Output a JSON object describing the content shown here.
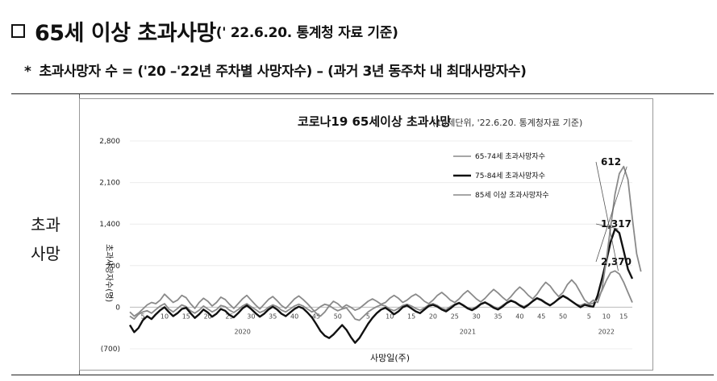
{
  "header": {
    "title_main": "65세 이상 초과사망",
    "title_note": "('  22.6.20. 통계청 자료 기준)"
  },
  "subheader": {
    "marker": "*",
    "text": "초과사망자 수 = ('20 –'22년 주차별 사망자수)  –  (과거 3년 동주차 내 최대사망자수)"
  },
  "row_label": {
    "line1": "초과",
    "line2": "사망"
  },
  "chart_data": {
    "type": "line",
    "title": "코로나19 65세이상 초과사망",
    "subtitle": "(10세단위, '22.6.20. 통계청자료 기준)",
    "xlabel": "사망일(주)",
    "ylabel": "초과사망자수(명)",
    "ylim": [
      -700,
      2800
    ],
    "yticks": [
      -700,
      0,
      700,
      1400,
      2100,
      2800
    ],
    "ytick_labels": [
      "(700)",
      "0",
      "700",
      "1,400",
      "2,100",
      "2,800"
    ],
    "x_week_ticks": [
      {
        "i": 3,
        "label": "5"
      },
      {
        "i": 8,
        "label": "10"
      },
      {
        "i": 13,
        "label": "15"
      },
      {
        "i": 18,
        "label": "20"
      },
      {
        "i": 23,
        "label": "25"
      },
      {
        "i": 28,
        "label": "30"
      },
      {
        "i": 33,
        "label": "35"
      },
      {
        "i": 38,
        "label": "40"
      },
      {
        "i": 43,
        "label": "45"
      },
      {
        "i": 48,
        "label": "50"
      },
      {
        "i": 55,
        "label": "5"
      },
      {
        "i": 60,
        "label": "10"
      },
      {
        "i": 65,
        "label": "15"
      },
      {
        "i": 70,
        "label": "20"
      },
      {
        "i": 75,
        "label": "25"
      },
      {
        "i": 80,
        "label": "30"
      },
      {
        "i": 85,
        "label": "35"
      },
      {
        "i": 90,
        "label": "40"
      },
      {
        "i": 95,
        "label": "45"
      },
      {
        "i": 100,
        "label": "50"
      },
      {
        "i": 106,
        "label": "5"
      },
      {
        "i": 110,
        "label": "10"
      },
      {
        "i": 114,
        "label": "15"
      }
    ],
    "year_labels": [
      {
        "i": 26,
        "label": "2020"
      },
      {
        "i": 78,
        "label": "2021"
      },
      {
        "i": 110,
        "label": "2022"
      }
    ],
    "legend_position": "top-right",
    "legend": [
      {
        "label": "65-74세 초과사망자수",
        "color": "#9a9a9a"
      },
      {
        "label": "75-84세 초과사망자수",
        "color": "#111111"
      },
      {
        "label": "85세 이상 초과사망자수",
        "color": "#9a9a9a"
      }
    ],
    "annotations": [
      {
        "label": "2,370",
        "series": 2
      },
      {
        "label": "1,317",
        "series": 1
      },
      {
        "label": "612",
        "series": 0
      }
    ],
    "series": [
      {
        "name": "65-74세 초과사망자수",
        "color": "#8a8a8a",
        "values": [
          -150,
          -200,
          -120,
          -80,
          -60,
          -100,
          -40,
          20,
          60,
          -30,
          -80,
          -20,
          40,
          10,
          -60,
          -100,
          -50,
          20,
          -30,
          -80,
          -40,
          30,
          10,
          -50,
          -90,
          -40,
          20,
          60,
          10,
          -40,
          -90,
          -60,
          0,
          40,
          10,
          -50,
          -80,
          -30,
          20,
          50,
          20,
          -30,
          -80,
          -50,
          10,
          50,
          30,
          -20,
          -60,
          -30,
          -10,
          -100,
          -200,
          -220,
          -150,
          -80,
          -30,
          10,
          40,
          20,
          -30,
          -60,
          -20,
          30,
          50,
          20,
          -20,
          -50,
          -10,
          40,
          60,
          30,
          -20,
          -40,
          10,
          50,
          80,
          40,
          -10,
          -30,
          10,
          60,
          90,
          50,
          10,
          -20,
          30,
          80,
          120,
          90,
          40,
          10,
          50,
          110,
          160,
          130,
          80,
          40,
          80,
          150,
          200,
          160,
          100,
          50,
          30,
          60,
          40,
          70,
          150,
          280,
          450,
          580,
          612,
          560,
          420,
          250,
          80
        ]
      },
      {
        "name": "75-84세 초과사망자수",
        "color": "#111111",
        "values": [
          -300,
          -420,
          -350,
          -220,
          -150,
          -200,
          -120,
          -50,
          0,
          -80,
          -150,
          -100,
          -30,
          -10,
          -100,
          -180,
          -120,
          -40,
          -90,
          -160,
          -110,
          -30,
          -60,
          -130,
          -170,
          -100,
          -20,
          30,
          -30,
          -100,
          -160,
          -110,
          -40,
          10,
          -40,
          -110,
          -150,
          -90,
          -30,
          10,
          -20,
          -90,
          -170,
          -280,
          -400,
          -480,
          -520,
          -460,
          -380,
          -300,
          -380,
          -500,
          -600,
          -520,
          -400,
          -280,
          -180,
          -100,
          -40,
          -10,
          -60,
          -120,
          -70,
          0,
          30,
          -20,
          -70,
          -100,
          -40,
          20,
          40,
          10,
          -40,
          -70,
          -20,
          40,
          70,
          30,
          -20,
          -50,
          -10,
          50,
          80,
          40,
          -10,
          -40,
          10,
          70,
          110,
          80,
          30,
          -10,
          40,
          100,
          150,
          120,
          70,
          30,
          80,
          140,
          190,
          150,
          100,
          50,
          0,
          40,
          20,
          10,
          200,
          480,
          780,
          1100,
          1317,
          1250,
          950,
          640,
          480
        ]
      },
      {
        "name": "85세 이상 초과사망자수",
        "color": "#8a8a8a",
        "values": [
          -80,
          -150,
          -100,
          -30,
          40,
          80,
          60,
          120,
          220,
          150,
          80,
          120,
          200,
          160,
          60,
          -20,
          80,
          150,
          100,
          20,
          80,
          170,
          130,
          50,
          -20,
          60,
          140,
          200,
          120,
          40,
          -30,
          50,
          130,
          180,
          110,
          30,
          -20,
          60,
          140,
          190,
          130,
          60,
          -20,
          -100,
          -150,
          -80,
          20,
          100,
          60,
          -10,
          40,
          0,
          -50,
          -20,
          40,
          100,
          140,
          100,
          50,
          80,
          150,
          200,
          150,
          80,
          120,
          180,
          220,
          170,
          100,
          60,
          120,
          200,
          250,
          190,
          120,
          80,
          140,
          220,
          280,
          210,
          140,
          90,
          150,
          230,
          300,
          240,
          170,
          110,
          180,
          270,
          340,
          280,
          200,
          140,
          220,
          330,
          420,
          360,
          260,
          180,
          250,
          380,
          460,
          380,
          250,
          120,
          60,
          120,
          80,
          300,
          800,
          1350,
          1900,
          2250,
          2370,
          2150,
          1500,
          900,
          600
        ]
      }
    ]
  }
}
